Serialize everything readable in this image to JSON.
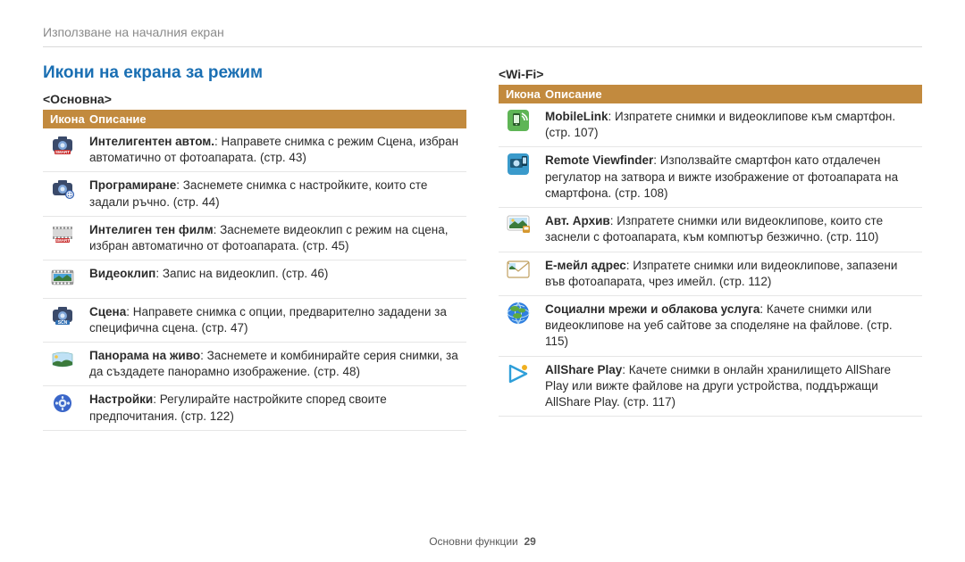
{
  "breadcrumb": "Използване на началния екран",
  "sectionTitle": "Икони на екрана за режим",
  "footerLabel": "Основни функции",
  "pageNumber": "29",
  "tableHeader": {
    "iconCol": "Икона",
    "descCol": "Описание"
  },
  "columns": [
    {
      "subTitle": "<Основна>",
      "rows": [
        {
          "iconName": "smart-auto-icon",
          "iconSvg": "<svg width='26' height='24' viewBox='0 0 26 24'><rect x='2' y='5' rx='3' ry='3' width='22' height='14' fill='#3a4a6a'/><rect x='8' y='2' width='10' height='4' rx='1' fill='#3a4a6a'/><circle cx='13' cy='12' r='5' fill='#7fa6d9'/><circle cx='13' cy='12' r='2.5' fill='#dce9f7'/><rect x='4' y='17' width='18' height='5' rx='1' fill='#c93030'/><text x='13' y='21' font-size='4.5' font-weight='700' fill='#fff' text-anchor='middle'>SMART</text></svg>",
          "descBold": "Интелигентен автом.",
          "descRest": ": Направете снимка с режим Сцена, избран автоматично от фотоапарата. (стр. 43)"
        },
        {
          "iconName": "program-icon",
          "iconSvg": "<svg width='26' height='24' viewBox='0 0 26 24'><rect x='2' y='5' rx='3' ry='3' width='22' height='14' fill='#3a4a6a'/><rect x='8' y='2' width='10' height='4' rx='1' fill='#3a4a6a'/><circle cx='13' cy='12' r='5' fill='#7fa6d9'/><circle cx='13' cy='12' r='2.5' fill='#dce9f7'/><circle cx='21' cy='18' r='5' fill='#2f5fb3'/><path d='M21 14.5v7M17.5 18h7' stroke='#fff' stroke-width='1.4'/><circle cx='21' cy='18' r='3.2' fill='none' stroke='#fff' stroke-width='1'/></svg>",
          "descBold": "Програмиране",
          "descRest": ": Заснемете снимка с настройките, които сте задали ръчно. (стр. 44)"
        },
        {
          "iconName": "smart-movie-icon",
          "iconSvg": "<svg width='26' height='24' viewBox='0 0 26 24'><rect x='2' y='4' width='22' height='14' rx='2' fill='#d8d8d8'/><rect x='2' y='4' width='22' height='3' fill='#9a9a9a'/><rect x='2' y='15' width='22' height='3' fill='#9a9a9a'/><rect x='4' y='4.5' width='2' height='2' fill='#fff'/><rect x='8' y='4.5' width='2' height='2' fill='#fff'/><rect x='12' y='4.5' width='2' height='2' fill='#fff'/><rect x='16' y='4.5' width='2' height='2' fill='#fff'/><rect x='20' y='4.5' width='2' height='2' fill='#fff'/><rect x='4' y='15.5' width='2' height='2' fill='#fff'/><rect x='8' y='15.5' width='2' height='2' fill='#fff'/><rect x='12' y='15.5' width='2' height='2' fill='#fff'/><rect x='16' y='15.5' width='2' height='2' fill='#fff'/><rect x='20' y='15.5' width='2' height='2' fill='#fff'/><rect x='5' y='17' width='16' height='5' rx='1' fill='#c93030'/><text x='13' y='21' font-size='4.5' font-weight='700' fill='#fff' text-anchor='middle'>SMART</text></svg>",
          "descBold": "Интелиген тен филм",
          "descRest": ": Заснемете видеоклип с режим на сцена, избран автоматично от фотоапарата. (стр. 45)"
        },
        {
          "iconName": "movie-icon",
          "iconSvg": "<svg width='26' height='22' viewBox='0 0 26 22'><rect x='1' y='3' width='24' height='16' rx='2' fill='#d8d8d8' stroke='#888' stroke-width='0.6'/><rect x='1' y='3' width='24' height='3' fill='#9a9a9a'/><rect x='1' y='16' width='24' height='3' fill='#9a9a9a'/><rect x='3' y='3.5' width='2' height='2' fill='#fff'/><rect x='7' y='3.5' width='2' height='2' fill='#fff'/><rect x='11' y='3.5' width='2' height='2' fill='#fff'/><rect x='15' y='3.5' width='2' height='2' fill='#fff'/><rect x='19' y='3.5' width='2' height='2' fill='#fff'/><rect x='3' y='16.5' width='2' height='2' fill='#fff'/><rect x='7' y='16.5' width='2' height='2' fill='#fff'/><rect x='11' y='16.5' width='2' height='2' fill='#fff'/><rect x='15' y='16.5' width='2' height='2' fill='#fff'/><rect x='19' y='16.5' width='2' height='2' fill='#fff'/><rect x='3' y='7' width='20' height='8' fill='#4aa3d9'/><path d='M3 13 L9 9 L13 12 L18 8 L23 12 L23 15 L3 15 Z' fill='#3b7a3b'/></svg>",
          "descBold": "Видеоклип",
          "descRest": ": Запис на видеоклип. (стр. 46)"
        },
        {
          "iconName": "scene-icon",
          "iconSvg": "<svg width='26' height='24' viewBox='0 0 26 24'><rect x='2' y='5' rx='3' ry='3' width='22' height='14' fill='#3a4a6a'/><rect x='8' y='2' width='10' height='4' rx='1' fill='#3a4a6a'/><circle cx='13' cy='12' r='5' fill='#7fa6d9'/><circle cx='13' cy='12' r='2.5' fill='#dce9f7'/><rect x='5' y='17' width='16' height='5' rx='1' fill='#2f6fb3'/><text x='13' y='21' font-size='5' font-weight='700' fill='#fff' text-anchor='middle'>SCN</text></svg>",
          "descBold": "Сцена",
          "descRest": ": Направете снимка с опции, предварително зададени за специфична сцена. (стр. 47)"
        },
        {
          "iconName": "live-panorama-icon",
          "iconSvg": "<svg width='26' height='20' viewBox='0 0 26 20'><path d='M2 4 Q13 0 24 4 L24 16 Q13 20 2 16 Z' fill='#bfe1f5' stroke='#6aa' stroke-width='0.6'/><path d='M2 14 Q7 10 12 13 Q17 8 24 13 L24 16 Q13 20 2 16 Z' fill='#3b7a3b'/><circle cx='6' cy='7' r='1.8' fill='#f5c542'/></svg>",
          "descBold": "Панорама на живо",
          "descRest": ": Заснемете и комбинирайте серия снимки, за да създадете панорамно изображение. (стр. 48)"
        },
        {
          "iconName": "settings-gear-icon",
          "iconSvg": "<svg width='24' height='24' viewBox='0 0 24 24'><circle cx='12' cy='12' r='10' fill='#3a66c9'/><g transform='translate(12 12)'><g fill='#dce9f7'><circle r='4.5'/><rect x='-1.2' y='-8' width='2.4' height='3' rx='1'/><rect x='-1.2' y='5' width='2.4' height='3' rx='1'/><rect x='-8' y='-1.2' width='3' height='2.4' rx='1'/><rect x='5' y='-1.2' width='3' height='2.4' rx='1'/><rect x='3.2' y='-6.2' width='2.4' height='3' rx='1' transform='rotate(45)'/><rect x='-5.6' y='-6.2' width='2.4' height='3' rx='1' transform='rotate(-45)'/><rect x='3.2' y='3.2' width='2.4' height='3' rx='1' transform='rotate(-45)'/><rect x='-5.6' y='3.2' width='2.4' height='3' rx='1' transform='rotate(45)'/></g><circle r='2' fill='#3a66c9'/></g></svg>",
          "descBold": "Настройки",
          "descRest": ": Регулирайте настройките според своите предпочитания. (стр. 122)"
        }
      ]
    },
    {
      "subTitle": "<Wi-Fi>",
      "rows": [
        {
          "iconName": "mobilelink-icon",
          "iconSvg": "<svg width='26' height='26' viewBox='0 0 26 26'><rect x='1' y='1' width='24' height='24' rx='4' fill='#5fb556'/><rect x='7' y='5' width='8' height='14' rx='1.5' fill='#2a5a2a'/><rect x='8' y='7' width='6' height='9' fill='#dff4dd'/><circle cx='11' cy='17.5' r='0.8' fill='#dff4dd'/><path d='M17 8 Q20 10 20 13' stroke='#fff' stroke-width='1.6' fill='none'/><path d='M17 5 Q23 8 23 13' stroke='#fff' stroke-width='1.6' fill='none'/></svg>",
          "descBold": "MobileLink",
          "descRest": ": Изпратете снимки и видеоклипове към смартфон. (стр. 107)"
        },
        {
          "iconName": "remote-viewfinder-icon",
          "iconSvg": "<svg width='26' height='26' viewBox='0 0 26 26'><rect x='1' y='1' width='24' height='24' rx='4' fill='#3a9acb'/><rect x='4' y='7' width='14' height='10' rx='1.5' fill='#1f5a7a'/><circle cx='11' cy='12' r='3.5' fill='#bfe1f5'/><rect x='17' y='4' width='6' height='11' rx='1' fill='#0e3a52'/><rect x='18' y='5.5' width='4' height='7' fill='#bfe1f5'/></svg>",
          "descBold": "Remote Viewfinder",
          "descRest": ": Използвайте смартфон като отдалечен регулатор на затвора и вижте изображение от фотоапарата на смартфона. (стр. 108)"
        },
        {
          "iconName": "auto-backup-icon",
          "iconSvg": "<svg width='26' height='22' viewBox='0 0 26 22'><rect x='1' y='1' width='24' height='16' rx='2' fill='#fff' stroke='#bdbdbd' stroke-width='1'/><rect x='3' y='3' width='20' height='12' fill='#bfe1f5'/><path d='M3 12 L9 7 L13 10 L18 6 L23 11 L23 15 L3 15 Z' fill='#3b7a3b'/><circle cx='7' cy='6' r='1.6' fill='#f5c542'/><rect x='18' y='12' width='8' height='8' rx='1.5' fill='#d5982f'/><rect x='19.5' y='13.5' width='5' height='3' fill='#fff'/></svg>",
          "descBold": "Авт. Архив",
          "descRest": ": Изпратете снимки или видеоклипове, които сте заснели с фотоапарата, към компютър безжично. (стр. 110)"
        },
        {
          "iconName": "email-icon",
          "iconSvg": "<svg width='26' height='20' viewBox='0 0 26 20'><rect x='1' y='1' width='24' height='18' rx='2' fill='#fff' stroke='#c0a060' stroke-width='1.2'/><path d='M1 2 L13 12 L25 2' fill='none' stroke='#c0a060' stroke-width='1.2'/><rect x='3' y='3' width='7' height='7' fill='#bfe1f5'/><path d='M3 8 L6 6 L10 9 L10 10 L3 10 Z' fill='#3b7a3b'/></svg>",
          "descBold": "Е-мейл адрес",
          "descRest": ": Изпратете снимки или видеоклипове, запазени във фотоапарата, чрез имейл. (стр. 112)"
        },
        {
          "iconName": "social-cloud-icon",
          "iconSvg": "<svg width='26' height='26' viewBox='0 0 26 26'><circle cx='13' cy='13' r='12' fill='#2f7fe0'/><ellipse cx='13' cy='13' rx='12' ry='5' fill='none' stroke='#bfe1f5' stroke-width='1'/><path d='M13 1 Q6 13 13 25 Q20 13 13 1' fill='none' stroke='#bfe1f5' stroke-width='1'/><path d='M6 6 Q13 2 20 6 M6 20 Q13 24 20 20' fill='none' stroke='#bfe1f5' stroke-width='1'/><ellipse cx='9' cy='8' rx='5' ry='3' fill='#5faa3f'/><ellipse cx='17' cy='10' rx='4' ry='2.5' fill='#5faa3f'/><ellipse cx='12' cy='16' rx='5' ry='3' fill='#5faa3f'/></svg>",
          "descBold": "Социални мрежи и облакова услуга",
          "descRest": ": Качете снимки или видеоклипове на уеб сайтове за споделяне на файлове. (стр. 115)"
        },
        {
          "iconName": "allshare-play-icon",
          "iconSvg": "<svg width='26' height='26' viewBox='0 0 26 26'><path d='M4 4 L22 13 L4 22 Z' fill='none' stroke='#2f9fd9' stroke-width='2.4' stroke-linejoin='round'/><circle cx='20' cy='6' r='3' fill='#f0b020'/></svg>",
          "descBold": "AllShare Play",
          "descRest": ": Качете снимки в онлайн хранилището AllShare Play или вижте файлове на други устройства, поддържащи AllShare Play. (стр. 117)"
        }
      ]
    }
  ],
  "colors": {
    "headerBg": "#c28a3e",
    "headerText": "#ffffff",
    "sectionTitle": "#1a6fb3",
    "breadcrumb": "#8a8a8a",
    "border": "#e6e6e6"
  }
}
